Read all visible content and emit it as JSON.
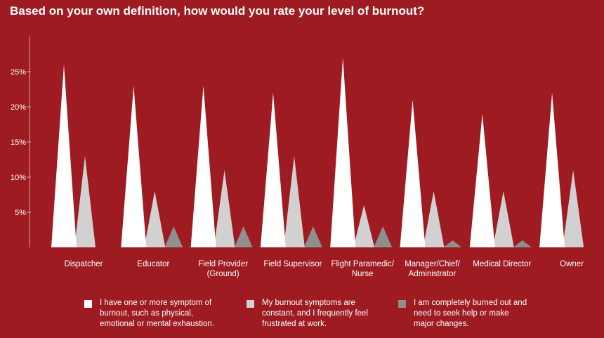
{
  "chart_data": {
    "type": "bar",
    "title": "Based on your own definition, how would you rate your level of burnout?",
    "categories": [
      "Dispatcher",
      "Educator",
      "Field Provider/(Ground)",
      "Field Supervisor",
      "Flight Paramedic//Nurse",
      "Manager/Chief//Administrator",
      "Medical Director",
      "Owner"
    ],
    "yticks": [
      "5%",
      "10%",
      "15%",
      "20%",
      "25%"
    ],
    "ylim": [
      0,
      30
    ],
    "grid": false,
    "legend_position": "bottom",
    "series": [
      {
        "name": "I have one or more symptom of/burnout, such as physical,/emotional or mental exhaustion.",
        "color": "#ffffff",
        "values": [
          26,
          23,
          23,
          22,
          27,
          21,
          19,
          22
        ]
      },
      {
        "name": "My burnout symptoms are/constant, and I frequently feel/frustrated at work.",
        "color": "#d1d1d1",
        "values": [
          13,
          8,
          11,
          13,
          6,
          8,
          8,
          11
        ]
      },
      {
        "name": "I am completely burned out and/need to seek help or make/major changes.",
        "color": "#8f8f8f",
        "values": [
          0,
          3,
          3,
          3,
          3,
          1,
          1,
          0
        ]
      }
    ]
  }
}
